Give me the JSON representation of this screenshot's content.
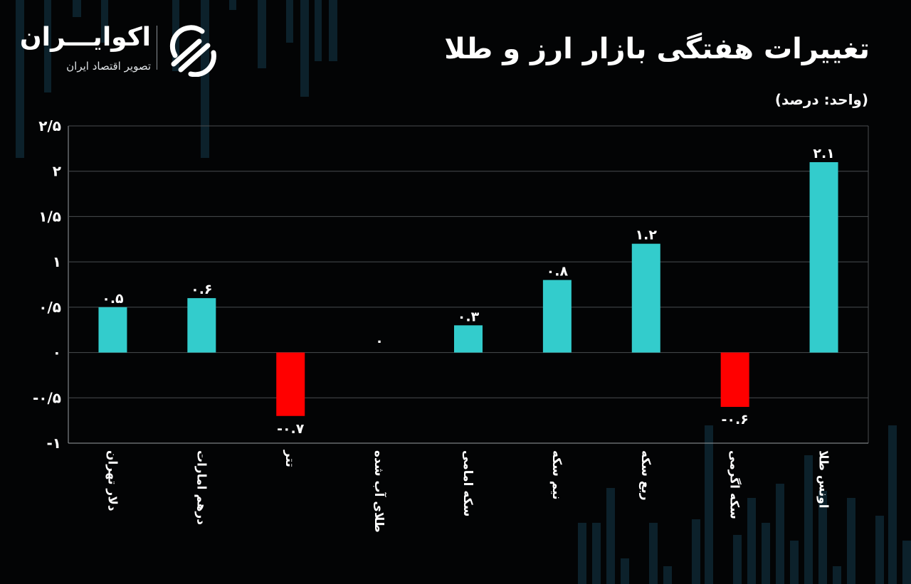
{
  "header": {
    "logo_name": "اکوایـــران",
    "logo_tagline": "تصویر اقتصاد ایران",
    "title": "تغییرات هفتگی بازار ارز و طلا",
    "unit": "(واحد: درصد)"
  },
  "colors": {
    "positive": "#33cccc",
    "negative": "#ff0000",
    "background": "#030405",
    "grid": "#4a4d50",
    "axis": "#9a9ea2"
  },
  "chart_data": {
    "type": "bar",
    "categories": [
      "دلار تهران",
      "درهم امارات",
      "تتر",
      "طلای آب شده",
      "سکه امامی",
      "نیم سکه",
      "ربع سکه",
      "سکه اگرمی",
      "اونس طلا"
    ],
    "values": [
      0.5,
      0.6,
      -0.7,
      0,
      0.3,
      0.8,
      1.2,
      -0.6,
      2.1
    ],
    "value_labels": [
      "۰.۵",
      "۰.۶",
      "-۰.۷",
      "۰",
      "۰.۳",
      "۰.۸",
      "۱.۲",
      "-۰.۶",
      "۲.۱"
    ],
    "ylim": [
      -1,
      2.5
    ],
    "yticks": [
      2.5,
      2,
      1.5,
      1,
      0.5,
      0,
      -0.5,
      -1
    ],
    "ytick_labels": [
      "۲/۵",
      "۲",
      "۱/۵",
      "۱",
      "۰/۵",
      "۰",
      "-۰/۵",
      "-۱"
    ],
    "grid": true,
    "legend": "none",
    "xlabel": "",
    "ylabel": ""
  }
}
